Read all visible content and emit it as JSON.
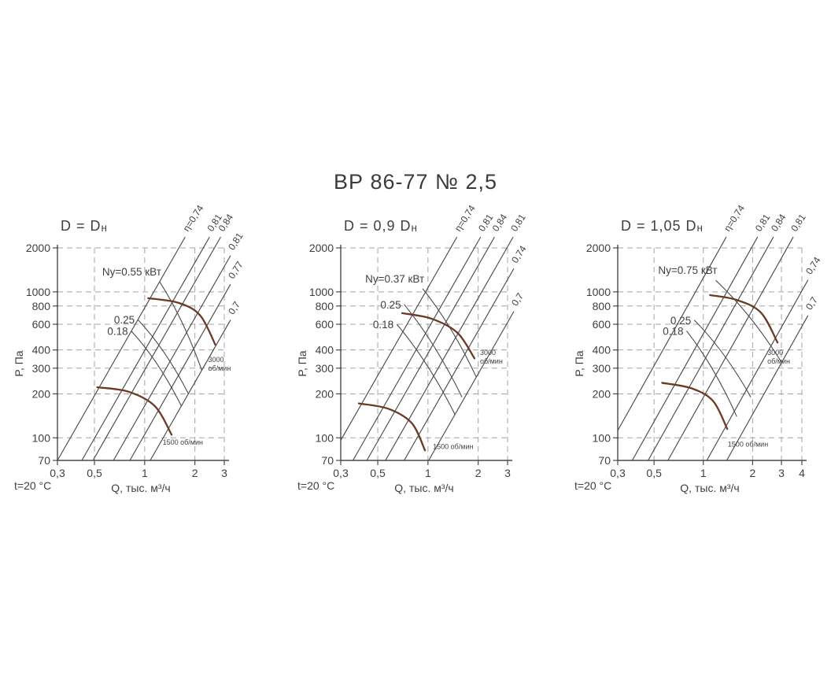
{
  "page_title": "ВР 86-77 № 2,5",
  "colors": {
    "ink": "#3f3f3f",
    "axis": "#4a4a4a",
    "grid": "#a3a3a3",
    "curve_brown": "#6b3a26"
  },
  "axes_common": {
    "y_label": "P, Па",
    "x_label": "Q, тыс. м³/ч",
    "temp_label": "t=20 °C",
    "y_ticks": [
      {
        "v": 70,
        "label": "70"
      },
      {
        "v": 100,
        "label": "100"
      },
      {
        "v": 200,
        "label": "200"
      },
      {
        "v": 300,
        "label": "300"
      },
      {
        "v": 400,
        "label": "400"
      },
      {
        "v": 600,
        "label": "600"
      },
      {
        "v": 800,
        "label": "800"
      },
      {
        "v": 1000,
        "label": "1000"
      },
      {
        "v": 2000,
        "label": "2000"
      }
    ]
  },
  "chart_data": [
    {
      "type": "line",
      "title": "D = Dн",
      "heading_main": "D = D",
      "heading_sub": "н",
      "x_log": true,
      "y_log": true,
      "xlim": [
        0.3,
        3
      ],
      "ylim": [
        70,
        2000
      ],
      "x_ticks": [
        {
          "v": 0.3,
          "label": "0,3"
        },
        {
          "v": 0.5,
          "label": "0,5"
        },
        {
          "v": 1,
          "label": "1"
        },
        {
          "v": 2,
          "label": "2"
        },
        {
          "v": 3,
          "label": "3"
        }
      ],
      "efficiency_lines": [
        {
          "label": "η=0,74",
          "q_at_70pa": 0.3
        },
        {
          "label": "0,81",
          "q_at_70pa": 0.42
        },
        {
          "label": "0,84",
          "q_at_70pa": 0.49
        },
        {
          "label": "0,81",
          "q_at_70pa": 0.65
        },
        {
          "label": "0,77",
          "q_at_70pa": 0.815
        },
        {
          "label": "0,7",
          "q_at_70pa": 1.08
        }
      ],
      "speed_curves": [
        {
          "rpm": 3000,
          "label_lines": [
            "3000",
            "об/мин"
          ],
          "label_at": [
            2.4,
            330
          ],
          "points": [
            [
              1.05,
              905
            ],
            [
              1.6,
              840
            ],
            [
              2.15,
              690
            ],
            [
              2.65,
              435
            ]
          ]
        },
        {
          "rpm": 1500,
          "label_lines": [
            "1500 об/мин"
          ],
          "label_at": [
            1.28,
            90
          ],
          "points": [
            [
              0.52,
              222
            ],
            [
              0.8,
              207
            ],
            [
              1.15,
              165
            ],
            [
              1.45,
              105
            ]
          ]
        }
      ],
      "power_curves": [
        {
          "label": "Ny=0.55 кВт",
          "label_side": "above",
          "points": [
            [
              1.23,
              1170
            ],
            [
              2.2,
              290
            ]
          ]
        },
        {
          "label": "0.25",
          "label_side": "left",
          "points": [
            [
              0.91,
              645
            ],
            [
              1.83,
              200
            ]
          ]
        },
        {
          "label": "0.18",
          "label_side": "left",
          "points": [
            [
              0.83,
              540
            ],
            [
              1.66,
              165
            ]
          ]
        }
      ]
    },
    {
      "type": "line",
      "title": "D = 0,9 Dн",
      "heading_main": "D = 0,9 D",
      "heading_sub": "н",
      "x_log": true,
      "y_log": true,
      "xlim": [
        0.3,
        3
      ],
      "ylim": [
        70,
        2000
      ],
      "x_ticks": [
        {
          "v": 0.3,
          "label": "0,3"
        },
        {
          "v": 0.5,
          "label": "0,5"
        },
        {
          "v": 1,
          "label": "1"
        },
        {
          "v": 2,
          "label": "2"
        },
        {
          "v": 3,
          "label": "3"
        }
      ],
      "efficiency_lines": [
        {
          "label": "η=0,74",
          "q_at_70pa": 0.256
        },
        {
          "label": "0,81",
          "q_at_70pa": 0.355
        },
        {
          "label": "0,84",
          "q_at_70pa": 0.43
        },
        {
          "label": "0,81",
          "q_at_70pa": 0.556
        },
        {
          "label": "0,74",
          "q_at_70pa": 0.72
        },
        {
          "label": "0,7",
          "q_at_70pa": 1.01
        }
      ],
      "speed_curves": [
        {
          "rpm": 3000,
          "label_lines": [
            "3000",
            "об/мин"
          ],
          "label_at": [
            2.05,
            370
          ],
          "points": [
            [
              0.7,
              715
            ],
            [
              1.05,
              655
            ],
            [
              1.5,
              525
            ],
            [
              1.9,
              350
            ]
          ]
        },
        {
          "rpm": 1500,
          "label_lines": [
            "1500 об/мин"
          ],
          "label_at": [
            1.07,
            84
          ],
          "points": [
            [
              0.385,
              172
            ],
            [
              0.58,
              158
            ],
            [
              0.8,
              126
            ],
            [
              0.96,
              82
            ]
          ]
        }
      ],
      "power_curves": [
        {
          "label": "Ny=0.37 кВт",
          "label_side": "above",
          "points": [
            [
              0.93,
              1050
            ],
            [
              1.95,
              260
            ]
          ]
        },
        {
          "label": "0.25",
          "label_side": "left",
          "points": [
            [
              0.72,
              820
            ],
            [
              1.6,
              190
            ]
          ]
        },
        {
          "label": "0.18",
          "label_side": "left",
          "points": [
            [
              0.65,
              600
            ],
            [
              1.45,
              145
            ]
          ]
        }
      ]
    },
    {
      "type": "line",
      "title": "D = 1,05 Dн",
      "heading_main": "D =  1,05 D",
      "heading_sub": "н",
      "x_log": true,
      "y_log": true,
      "xlim": [
        0.3,
        4
      ],
      "ylim": [
        70,
        2000
      ],
      "x_ticks": [
        {
          "v": 0.3,
          "label": "0,3"
        },
        {
          "v": 0.5,
          "label": "0,5"
        },
        {
          "v": 1,
          "label": "1"
        },
        {
          "v": 2,
          "label": "2"
        },
        {
          "v": 3,
          "label": "3"
        },
        {
          "v": 4,
          "label": "4"
        }
      ],
      "efficiency_lines": [
        {
          "label": "η=0,74",
          "q_at_70pa": 0.237
        },
        {
          "label": "0,81",
          "q_at_70pa": 0.368
        },
        {
          "label": "0,84",
          "q_at_70pa": 0.46
        },
        {
          "label": "0,81",
          "q_at_70pa": 0.608
        },
        {
          "label": "0,74",
          "q_at_70pa": 1.05
        },
        {
          "label": "0,7",
          "q_at_70pa": 1.39
        }
      ],
      "speed_curves": [
        {
          "rpm": 3000,
          "label_lines": [
            "3000",
            "об/мин"
          ],
          "label_at": [
            2.46,
            370
          ],
          "points": [
            [
              1.1,
              950
            ],
            [
              1.6,
              880
            ],
            [
              2.25,
              720
            ],
            [
              2.84,
              450
            ]
          ]
        },
        {
          "rpm": 1500,
          "label_lines": [
            "1500 об/мин"
          ],
          "label_at": [
            1.41,
            87
          ],
          "points": [
            [
              0.56,
              238
            ],
            [
              0.85,
              218
            ],
            [
              1.15,
              178
            ],
            [
              1.4,
              115
            ]
          ]
        }
      ],
      "power_curves": [
        {
          "label": "Ny=0.75 кВт",
          "label_side": "above",
          "points": [
            [
              1.19,
              1200
            ],
            [
              3.0,
              330
            ]
          ]
        },
        {
          "label": "0.25",
          "label_side": "left",
          "points": [
            [
              0.88,
              640
            ],
            [
              1.95,
              190
            ]
          ]
        },
        {
          "label": "0.18",
          "label_side": "left",
          "points": [
            [
              0.79,
              540
            ],
            [
              1.6,
              140
            ]
          ]
        }
      ]
    }
  ]
}
